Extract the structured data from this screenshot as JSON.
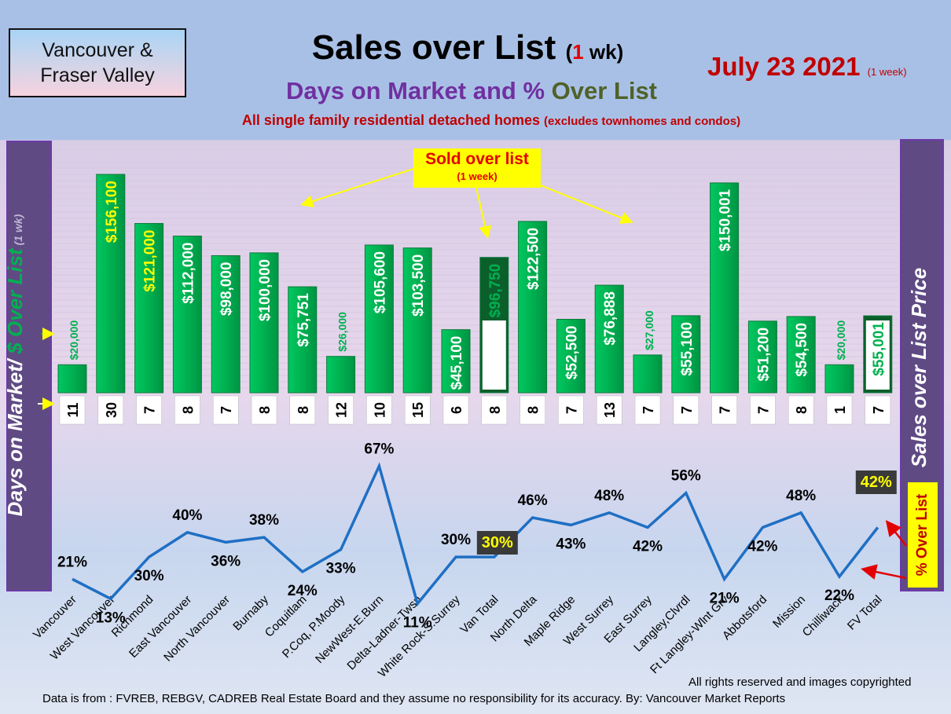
{
  "header": {
    "region_line1": "Vancouver &",
    "region_line2": "Fraser Valley",
    "title_main": "Sales over List",
    "title_paren_open": "(",
    "title_paren_num": "1",
    "title_paren_rest": " wk)",
    "subtitle_part1": "Days on Market and % ",
    "subtitle_part2": "Over List",
    "description_main": "All single family residential detached homes ",
    "description_small": "(excludes townhomes and condos)",
    "date": "July 23  2021",
    "date_period": "(1 week)"
  },
  "left_axis": {
    "part1": "Days on Market/ ",
    "part2": "$ Over List",
    "part3": " (1 wk)"
  },
  "right_axis": {
    "label": "Sales over List Price"
  },
  "pct_box": {
    "label": "% Over List"
  },
  "annotation": {
    "line1": "Sold over list",
    "line2": "(1 week)"
  },
  "footer": {
    "credit": "All rights reserved and  images copyrighted",
    "source": "Data is from : FVREB, REBGV, CADREB Real Estate Board and they assume no responsibility for its accuracy. By: Vancouver Market Reports"
  },
  "colors": {
    "bar_green": "#00b050",
    "bar_dark_green": "#0b5f2b",
    "value_yellow": "#ffff00",
    "value_white": "#ffffff",
    "value_green": "#00b050",
    "line_blue": "#1f6fc4",
    "total_label_bg": "#3a3a3a",
    "arrow_yellow": "#ffff00",
    "arrow_red": "#e30000"
  },
  "chart_data": {
    "type": "bar",
    "categories": [
      "Vancouver",
      "West Vancouver",
      "Richmond",
      "East Vancouver",
      "North Vancouver",
      "Burnaby",
      "Coquitlam",
      "P.Coq, P.Moody",
      "NewWest-E.Burn",
      "Delta-Ladner-Twsn",
      "White Rock-S.Surrey",
      "Van Total",
      "North Delta",
      "Maple Ridge",
      "West Surrey",
      "East Surrey",
      "Langley,Clvrdl",
      "Ft Langley-Wlnt Grv",
      "Abbotsford",
      "Mission",
      "Chilliwack",
      "FV Total"
    ],
    "series": [
      {
        "values": [
          20000,
          156100,
          121000,
          112000,
          98000,
          100000,
          75751,
          26000,
          105600,
          103500,
          45100,
          96750,
          122500,
          52500,
          76888,
          27000,
          55100,
          150001,
          51200,
          54500,
          20000,
          55001
        ]
      },
      {
        "values": [
          11,
          30,
          7,
          8,
          7,
          8,
          8,
          12,
          10,
          15,
          6,
          8,
          8,
          7,
          13,
          7,
          7,
          7,
          7,
          8,
          1,
          7
        ]
      },
      {
        "values": [
          21,
          13,
          30,
          40,
          36,
          38,
          24,
          33,
          67,
          11,
          30,
          30,
          46,
          43,
          48,
          42,
          56,
          21,
          42,
          48,
          22,
          42
        ]
      }
    ],
    "value_labels": [
      "$20,000",
      "$156,100",
      "$121,000",
      "$112,000",
      "$98,000",
      "$100,000",
      "$75,751",
      "$26,000",
      "$105,600",
      "$103,500",
      "$45,100",
      "$96,750",
      "$122,500",
      "$52,500",
      "$76,888",
      "$27,000",
      "$55,100",
      "$150,001",
      "$51,200",
      "$54,500",
      "$20,000",
      "$55,001"
    ],
    "label_colors": [
      "green",
      "yellow",
      "yellow",
      "white",
      "white",
      "white",
      "white",
      "green",
      "white",
      "white",
      "white",
      "green",
      "white",
      "white",
      "white",
      "green",
      "white",
      "white",
      "white",
      "white",
      "green",
      "green"
    ],
    "pct_labels": [
      "21%",
      "13%",
      "30%",
      "40%",
      "36%",
      "38%",
      "24%",
      "33%",
      "67%",
      "11%",
      "30%",
      "30%",
      "46%",
      "43%",
      "48%",
      "42%",
      "56%",
      "21%",
      "42%",
      "48%",
      "22%",
      "42%"
    ],
    "dom_labels": [
      "11",
      "30",
      "7",
      "8",
      "7",
      "8",
      "8",
      "12",
      "10",
      "15",
      "6",
      "8",
      "8",
      "7",
      "13",
      "7",
      "7",
      "7",
      "7",
      "8",
      "1",
      "7"
    ],
    "highlight_indices": [
      11,
      21
    ]
  }
}
